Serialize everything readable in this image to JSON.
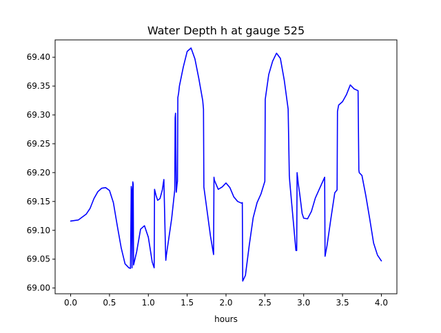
{
  "chart_data": {
    "type": "line",
    "title": "Water Depth h at gauge 525",
    "xlabel": "hours",
    "ylabel": "",
    "xlim": [
      -0.2,
      4.2
    ],
    "ylim": [
      68.99,
      69.43
    ],
    "grid": false,
    "legend": "none",
    "xticks": [
      0.0,
      0.5,
      1.0,
      1.5,
      2.0,
      2.5,
      3.0,
      3.5,
      4.0
    ],
    "xtick_labels": [
      "0.0",
      "0.5",
      "1.0",
      "1.5",
      "2.0",
      "2.5",
      "3.0",
      "3.5",
      "4.0"
    ],
    "yticks": [
      69.0,
      69.05,
      69.1,
      69.15,
      69.2,
      69.25,
      69.3,
      69.35,
      69.4
    ],
    "ytick_labels": [
      "69.00",
      "69.05",
      "69.10",
      "69.15",
      "69.20",
      "69.25",
      "69.30",
      "69.35",
      "69.40"
    ],
    "series": [
      {
        "color": "#0000ff",
        "x": [
          0.0,
          0.1,
          0.2,
          0.25,
          0.3,
          0.35,
          0.4,
          0.45,
          0.5,
          0.55,
          0.6,
          0.65,
          0.7,
          0.75,
          0.77,
          0.78,
          0.785,
          0.79,
          0.8,
          0.805,
          0.81,
          0.85,
          0.9,
          0.95,
          1.0,
          1.05,
          1.075,
          1.08,
          1.1,
          1.12,
          1.15,
          1.18,
          1.2,
          1.22,
          1.225,
          1.23,
          1.3,
          1.34,
          1.345,
          1.35,
          1.36,
          1.37,
          1.375,
          1.38,
          1.39,
          1.4,
          1.45,
          1.5,
          1.55,
          1.6,
          1.65,
          1.7,
          1.71,
          1.715,
          1.75,
          1.8,
          1.84,
          1.845,
          1.85,
          1.9,
          1.95,
          2.0,
          2.05,
          2.1,
          2.15,
          2.2,
          2.21,
          2.215,
          2.25,
          2.3,
          2.35,
          2.4,
          2.45,
          2.5,
          2.505,
          2.55,
          2.6,
          2.65,
          2.7,
          2.75,
          2.8,
          2.815,
          2.82,
          2.9,
          2.91,
          2.915,
          2.93,
          2.95,
          2.98,
          3.0,
          3.05,
          3.1,
          3.15,
          3.2,
          3.25,
          3.27,
          3.275,
          3.3,
          3.35,
          3.4,
          3.43,
          3.435,
          3.45,
          3.5,
          3.55,
          3.6,
          3.65,
          3.7,
          3.71,
          3.715,
          3.75,
          3.8,
          3.85,
          3.9,
          3.95,
          4.0
        ],
        "y": [
          69.116,
          69.118,
          69.128,
          69.138,
          69.155,
          69.167,
          69.173,
          69.174,
          69.169,
          69.148,
          69.108,
          69.07,
          69.042,
          69.035,
          69.034,
          69.176,
          69.17,
          69.035,
          69.184,
          69.18,
          69.04,
          69.063,
          69.102,
          69.108,
          69.088,
          69.045,
          69.035,
          69.171,
          69.16,
          69.152,
          69.155,
          69.17,
          69.188,
          69.07,
          69.048,
          69.055,
          69.12,
          69.17,
          69.295,
          69.303,
          69.166,
          69.18,
          69.185,
          69.33,
          69.338,
          69.35,
          69.383,
          69.41,
          69.416,
          69.397,
          69.363,
          69.325,
          69.31,
          69.175,
          69.14,
          69.09,
          69.058,
          69.192,
          69.187,
          69.171,
          69.175,
          69.182,
          69.174,
          69.158,
          69.15,
          69.147,
          69.148,
          69.012,
          69.022,
          69.075,
          69.122,
          69.148,
          69.163,
          69.185,
          69.327,
          69.37,
          69.393,
          69.407,
          69.398,
          69.36,
          69.31,
          69.195,
          69.185,
          69.065,
          69.065,
          69.2,
          69.181,
          69.162,
          69.129,
          69.121,
          69.12,
          69.133,
          69.156,
          69.171,
          69.186,
          69.192,
          69.055,
          69.073,
          69.12,
          69.165,
          69.17,
          69.306,
          69.317,
          69.323,
          69.335,
          69.352,
          69.345,
          69.342,
          69.205,
          69.2,
          69.195,
          69.16,
          69.12,
          69.078,
          69.057,
          69.047
        ]
      }
    ]
  }
}
